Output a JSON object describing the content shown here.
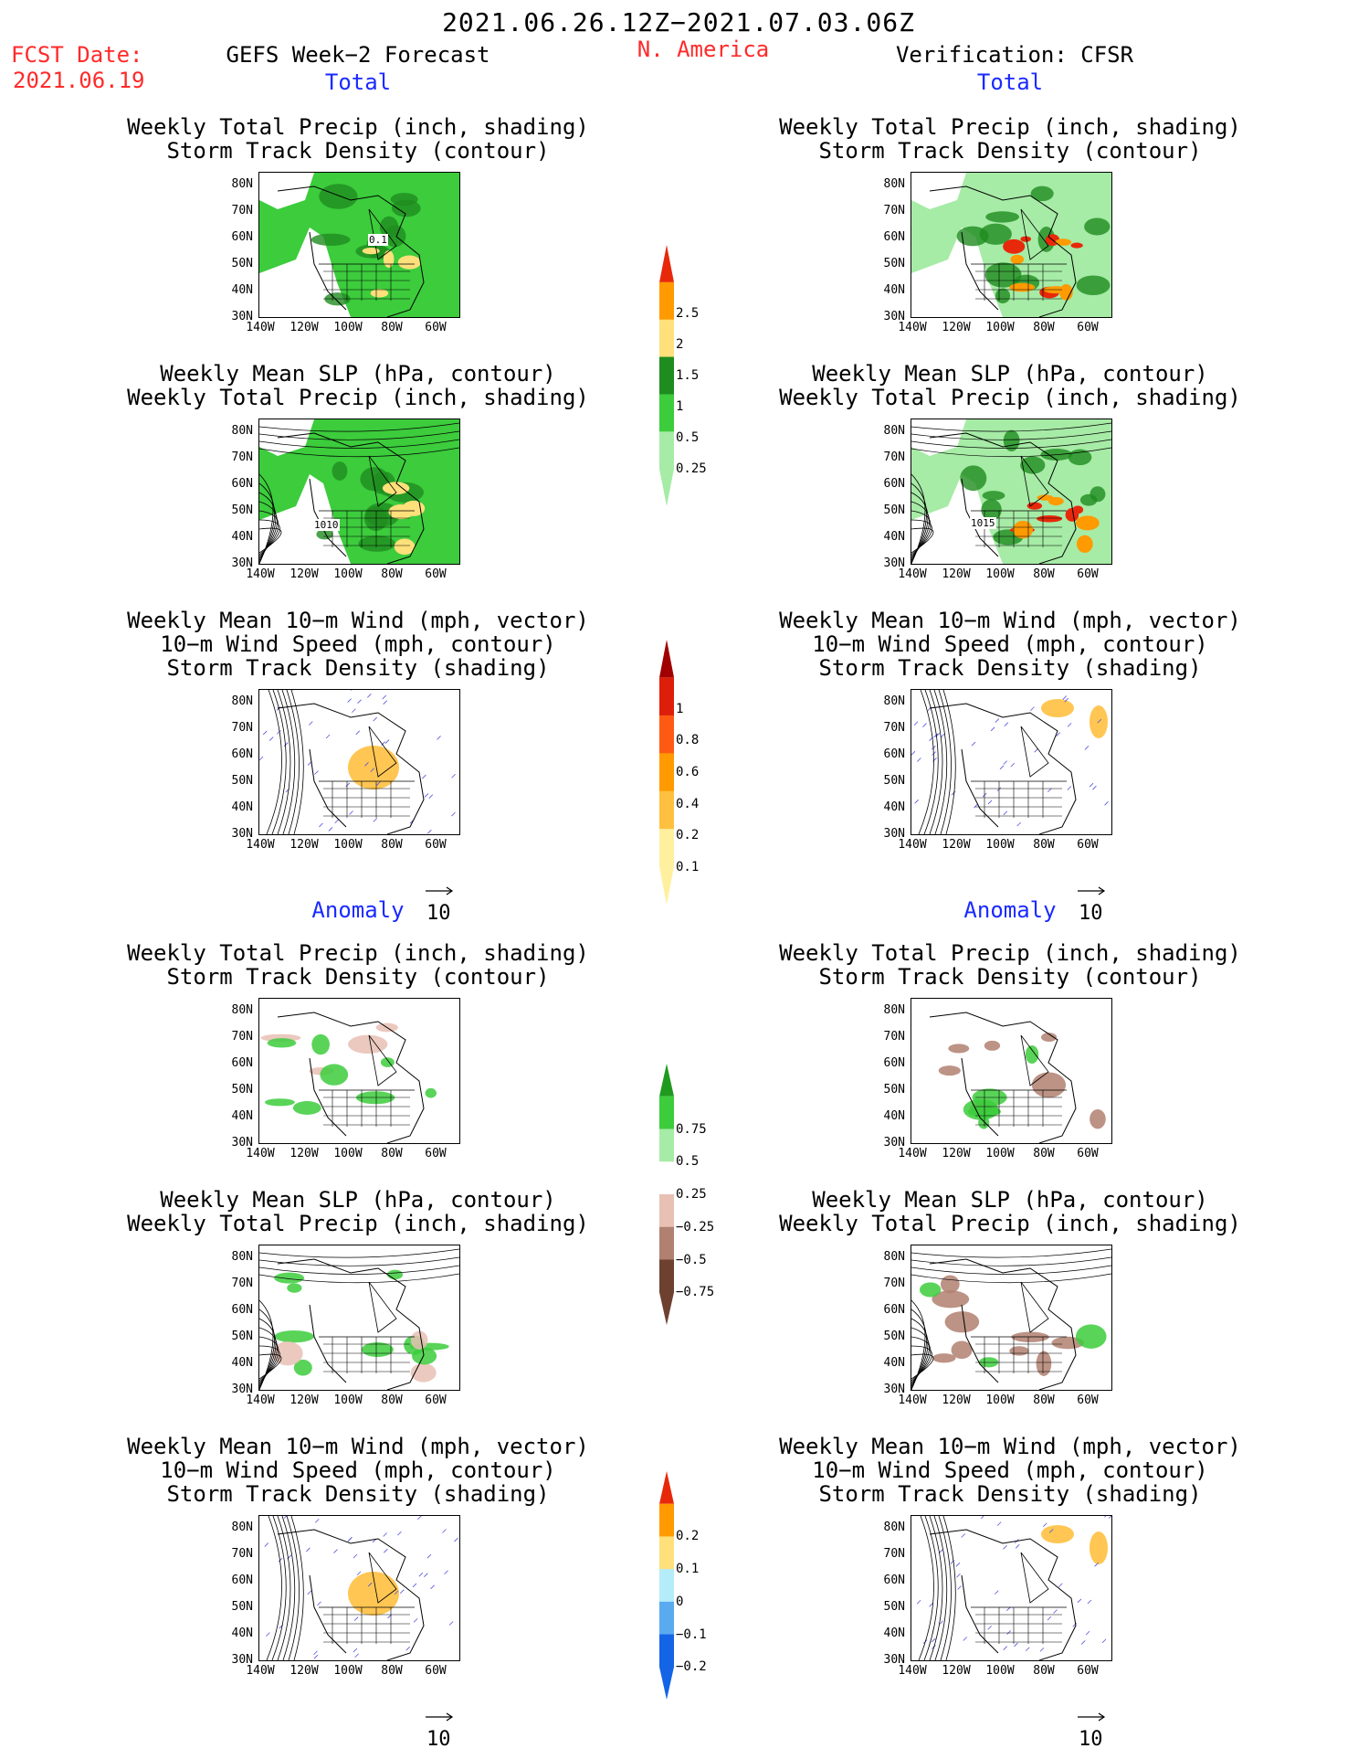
{
  "header": {
    "date_range": "2021.06.26.12Z−2021.07.03.06Z",
    "fcst_label": "FCST Date:",
    "fcst_date": "2021.06.19",
    "left_title": "GEFS Week−2 Forecast",
    "region": "N. America",
    "right_title": "Verification: CFSR"
  },
  "sections": {
    "total": "Total",
    "anomaly": "Anomaly"
  },
  "panel_titles": {
    "precip_track": [
      "Weekly Total Precip (inch, shading)",
      "Storm Track Density (contour)"
    ],
    "slp_precip": [
      "Weekly Mean SLP (hPa, contour)",
      "Weekly Total Precip (inch, shading)"
    ],
    "wind_track": [
      "Weekly Mean 10−m Wind (mph, vector)",
      "10−m Wind Speed (mph, contour)",
      "Storm Track Density (shading)"
    ]
  },
  "axes": {
    "lat_ticks": [
      "80N",
      "70N",
      "60N",
      "50N",
      "40N",
      "30N"
    ],
    "lon_ticks": [
      "140W",
      "120W",
      "100W",
      "80W",
      "60W"
    ]
  },
  "map_labels": {
    "fcst_track_contour": "0.1",
    "fcst_slp_contour": "1010",
    "cfsr_slp_contour": "1015"
  },
  "vector_reference": "10",
  "colorbars": [
    {
      "id": "precip_total",
      "labels": [
        "2.5",
        "2",
        "1.5",
        "1",
        "0.5",
        "0.25"
      ],
      "colors": [
        "#e8280a",
        "#ff9a00",
        "#ffe07a",
        "#1f8c1f",
        "#3ccc3c",
        "#a6eba6"
      ]
    },
    {
      "id": "track_total",
      "labels": [
        "1",
        "0.8",
        "0.6",
        "0.4",
        "0.2",
        "0.1"
      ],
      "colors": [
        "#a00000",
        "#dc1e0a",
        "#ff5a14",
        "#ff9a00",
        "#ffc040",
        "#fff0a0"
      ]
    },
    {
      "id": "precip_anom",
      "labels": [
        "0.75",
        "0.5",
        "0.25",
        "−0.25",
        "−0.5",
        "−0.75"
      ],
      "colors": [
        "#1f9a1f",
        "#3ccc3c",
        "#a6eba6",
        "#ffffff",
        "#e8c0b4",
        "#b08070",
        "#6e4030"
      ]
    },
    {
      "id": "track_anom",
      "labels": [
        "0.2",
        "0.1",
        "0",
        "−0.1",
        "−0.2"
      ],
      "colors": [
        "#e8280a",
        "#ff9a00",
        "#ffe07a",
        "#b4ecfa",
        "#5aaaf0",
        "#1464e6"
      ]
    }
  ]
}
